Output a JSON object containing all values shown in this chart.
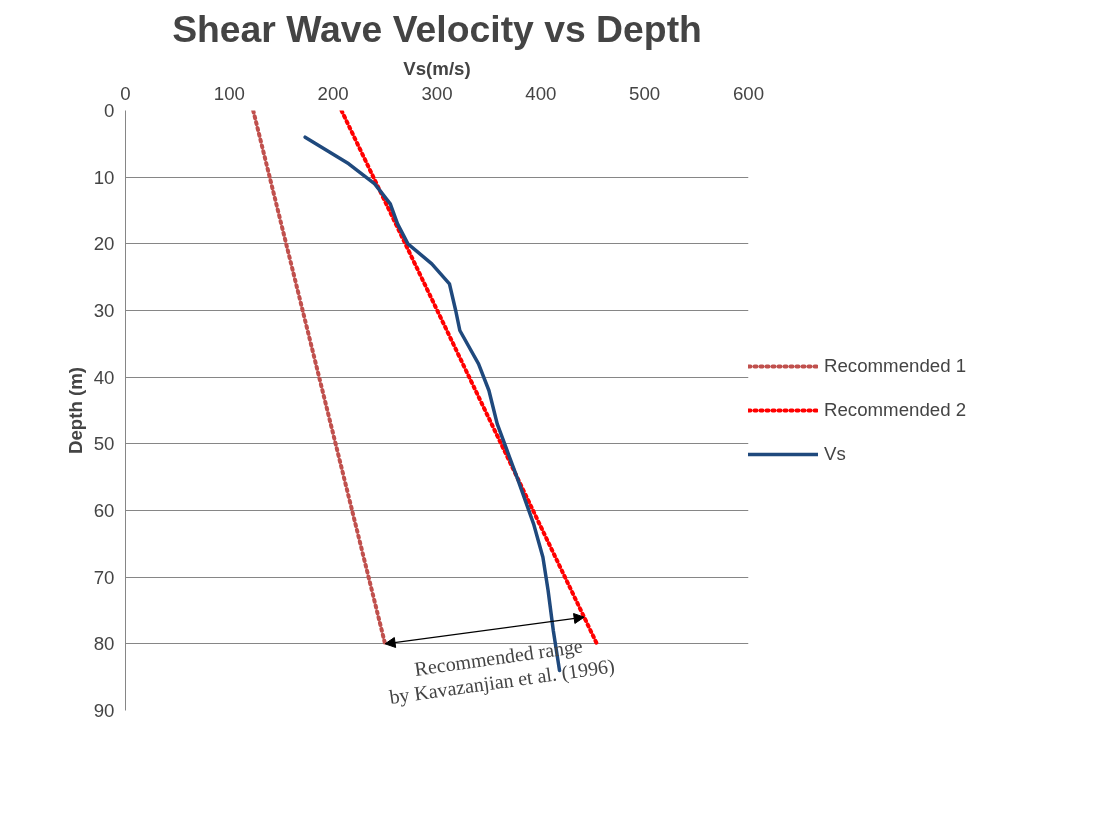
{
  "chart_data": {
    "type": "line",
    "title": "Shear Wave Velocity vs Depth",
    "xlabel": "Vs(m/s)",
    "ylabel": "Depth (m)",
    "xlim": [
      0,
      600
    ],
    "xticks": [
      0,
      100,
      200,
      300,
      400,
      500,
      600
    ],
    "ylim": [
      90,
      0
    ],
    "yticks": [
      0,
      10,
      20,
      30,
      40,
      50,
      60,
      70,
      80,
      90
    ],
    "grid": "y",
    "legend": "right",
    "series": [
      {
        "name": "Recommended 1",
        "color": "#c0504d",
        "line_style": "dotted",
        "x": [
          123,
          250
        ],
        "values": [
          0,
          80
        ]
      },
      {
        "name": "Recommended 2",
        "color": "#ff0000",
        "line_style": "dotted",
        "x": [
          208,
          454
        ],
        "values": [
          0,
          80
        ]
      },
      {
        "name": "Vs",
        "color": "#1f497d",
        "line_style": "solid",
        "x": [
          173,
          215,
          240,
          255,
          262,
          272,
          295,
          312,
          318,
          322,
          340,
          350,
          358,
          377,
          393,
          402,
          407,
          412,
          418
        ],
        "values": [
          4,
          8,
          11,
          14,
          17,
          20,
          23,
          26,
          30,
          33,
          38,
          42,
          47,
          55,
          62,
          67,
          72,
          78,
          84
        ]
      }
    ],
    "annotations": [
      {
        "text": "Recommended range\nby Kavazanjian et al. (1996)",
        "x": 250,
        "y": 80
      }
    ]
  }
}
